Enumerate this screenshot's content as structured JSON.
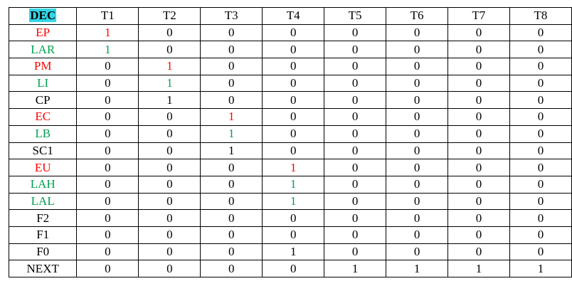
{
  "table": {
    "corner_label": "DEC",
    "corner_highlight": "#33d6e6",
    "columns": [
      "T1",
      "T2",
      "T3",
      "T4",
      "T5",
      "T6",
      "T7",
      "T8"
    ],
    "colors": {
      "red": "#ff0000",
      "green": "#00a050",
      "black": "#000000"
    },
    "rows": [
      {
        "label": "EP",
        "label_color": "red",
        "cells": [
          "1",
          "0",
          "0",
          "0",
          "0",
          "0",
          "0",
          "0"
        ],
        "cell_colors": [
          "red",
          "",
          "",
          "",
          "",
          "",
          "",
          ""
        ]
      },
      {
        "label": "LAR",
        "label_color": "green",
        "cells": [
          "1",
          "0",
          "0",
          "0",
          "0",
          "0",
          "0",
          "0"
        ],
        "cell_colors": [
          "green",
          "",
          "",
          "",
          "",
          "",
          "",
          ""
        ]
      },
      {
        "label": "PM",
        "label_color": "red",
        "cells": [
          "0",
          "1",
          "0",
          "0",
          "0",
          "0",
          "0",
          "0"
        ],
        "cell_colors": [
          "",
          "red",
          "",
          "",
          "",
          "",
          "",
          ""
        ]
      },
      {
        "label": "LI",
        "label_color": "green",
        "cells": [
          "0",
          "1",
          "0",
          "0",
          "0",
          "0",
          "0",
          "0"
        ],
        "cell_colors": [
          "",
          "green",
          "",
          "",
          "",
          "",
          "",
          ""
        ]
      },
      {
        "label": "CP",
        "label_color": "black",
        "cells": [
          "0",
          "1",
          "0",
          "0",
          "0",
          "0",
          "0",
          "0"
        ],
        "cell_colors": [
          "",
          "",
          "",
          "",
          "",
          "",
          "",
          ""
        ]
      },
      {
        "label": "EC",
        "label_color": "red",
        "cells": [
          "0",
          "0",
          "1",
          "0",
          "0",
          "0",
          "0",
          "0"
        ],
        "cell_colors": [
          "",
          "",
          "red",
          "",
          "",
          "",
          "",
          ""
        ]
      },
      {
        "label": "LB",
        "label_color": "green",
        "cells": [
          "0",
          "0",
          "1",
          "0",
          "0",
          "0",
          "0",
          "0"
        ],
        "cell_colors": [
          "",
          "",
          "green",
          "",
          "",
          "",
          "",
          ""
        ]
      },
      {
        "label": "SC1",
        "label_color": "black",
        "cells": [
          "0",
          "0",
          "1",
          "0",
          "0",
          "0",
          "0",
          "0"
        ],
        "cell_colors": [
          "",
          "",
          "",
          "",
          "",
          "",
          "",
          ""
        ]
      },
      {
        "label": "EU",
        "label_color": "red",
        "cells": [
          "0",
          "0",
          "0",
          "1",
          "0",
          "0",
          "0",
          "0"
        ],
        "cell_colors": [
          "",
          "",
          "",
          "red",
          "",
          "",
          "",
          ""
        ]
      },
      {
        "label": "LAH",
        "label_color": "green",
        "cells": [
          "0",
          "0",
          "0",
          "1",
          "0",
          "0",
          "0",
          "0"
        ],
        "cell_colors": [
          "",
          "",
          "",
          "green",
          "",
          "",
          "",
          ""
        ]
      },
      {
        "label": "LAL",
        "label_color": "green",
        "cells": [
          "0",
          "0",
          "0",
          "1",
          "0",
          "0",
          "0",
          "0"
        ],
        "cell_colors": [
          "",
          "",
          "",
          "green",
          "",
          "",
          "",
          ""
        ]
      },
      {
        "label": "F2",
        "label_color": "black",
        "cells": [
          "0",
          "0",
          "0",
          "0",
          "0",
          "0",
          "0",
          "0"
        ],
        "cell_colors": [
          "",
          "",
          "",
          "",
          "",
          "",
          "",
          ""
        ]
      },
      {
        "label": "F1",
        "label_color": "black",
        "cells": [
          "0",
          "0",
          "0",
          "0",
          "0",
          "0",
          "0",
          "0"
        ],
        "cell_colors": [
          "",
          "",
          "",
          "",
          "",
          "",
          "",
          ""
        ]
      },
      {
        "label": "F0",
        "label_color": "black",
        "cells": [
          "0",
          "0",
          "0",
          "1",
          "0",
          "0",
          "0",
          "0"
        ],
        "cell_colors": [
          "",
          "",
          "",
          "",
          "",
          "",
          "",
          ""
        ]
      },
      {
        "label": "NEXT",
        "label_color": "black",
        "cells": [
          "0",
          "0",
          "0",
          "0",
          "1",
          "1",
          "1",
          "1"
        ],
        "cell_colors": [
          "",
          "",
          "",
          "",
          "",
          "",
          "",
          ""
        ]
      }
    ]
  }
}
